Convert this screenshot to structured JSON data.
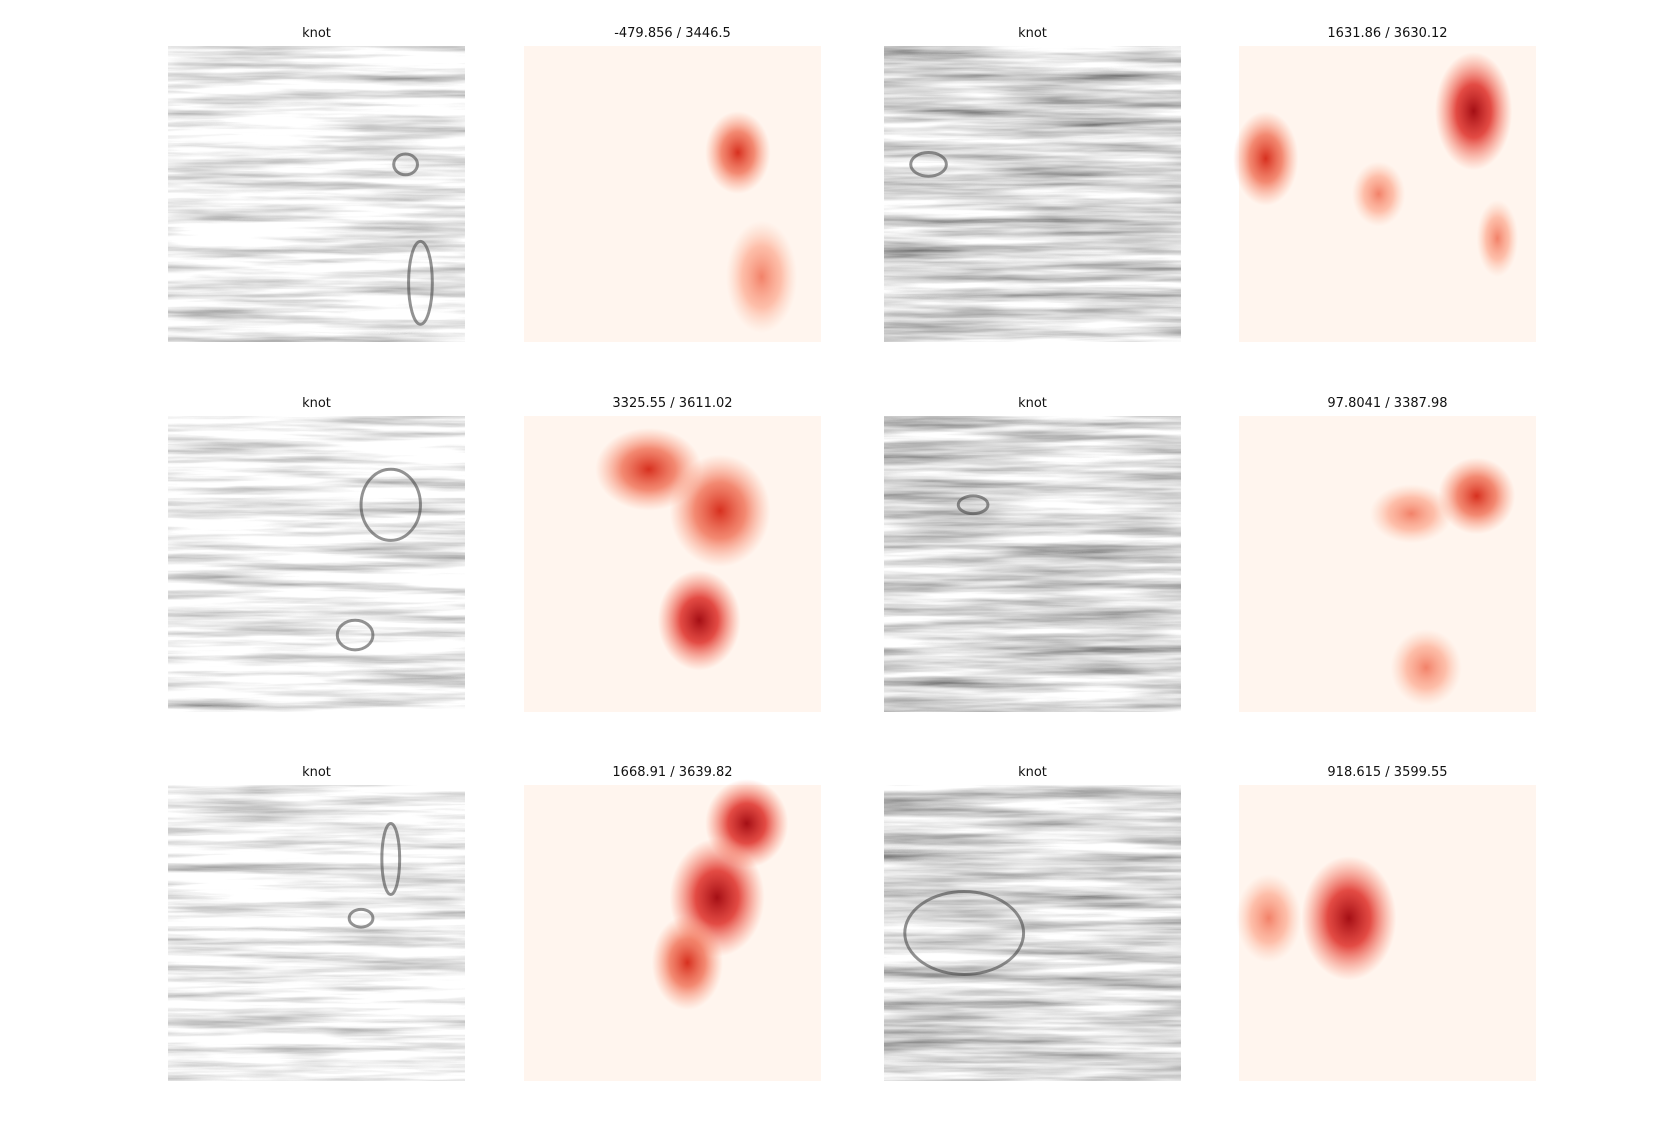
{
  "panels": [
    {
      "title": "knot"
    },
    {
      "title": "-479.856 / 3446.5"
    },
    {
      "title": "knot"
    },
    {
      "title": "1631.86 / 3630.12"
    },
    {
      "title": "knot"
    },
    {
      "title": "3325.55 / 3611.02"
    },
    {
      "title": "knot"
    },
    {
      "title": "97.8041 / 3387.98"
    },
    {
      "title": "knot"
    },
    {
      "title": "1668.91 / 3639.82"
    },
    {
      "title": "knot"
    },
    {
      "title": "918.615 / 3599.55"
    }
  ]
}
